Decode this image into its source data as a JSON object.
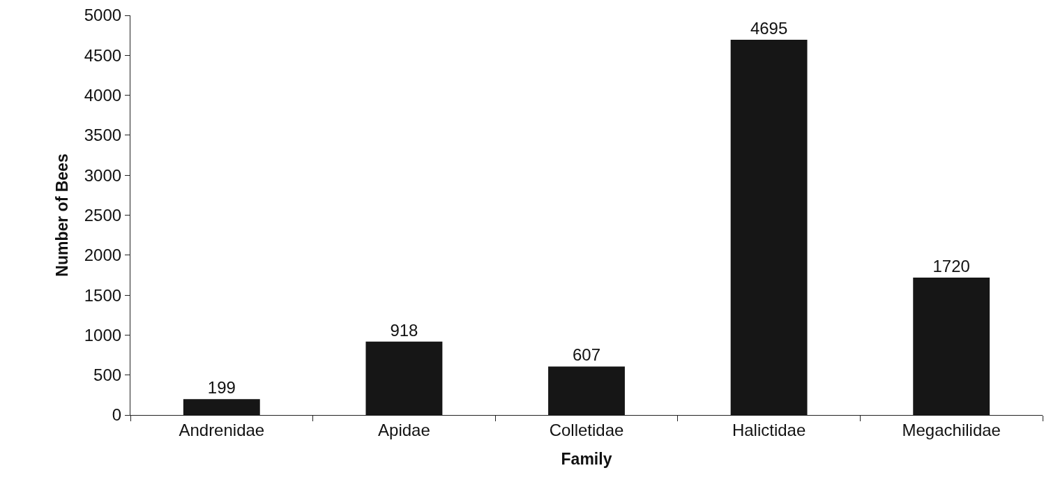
{
  "chart_data": {
    "type": "bar",
    "xlabel": "Family",
    "ylabel": "Number of Bees",
    "categories": [
      "Andrenidae",
      "Apidae",
      "Colletidae",
      "Halictidae",
      "Megachilidae"
    ],
    "values": [
      199,
      918,
      607,
      4695,
      1720
    ],
    "color": "#161616",
    "ylim": [
      0,
      5000
    ],
    "yticks": [
      0,
      500,
      1000,
      1500,
      2000,
      2500,
      3000,
      3500,
      4000,
      4500,
      5000
    ],
    "data_labels": true
  }
}
